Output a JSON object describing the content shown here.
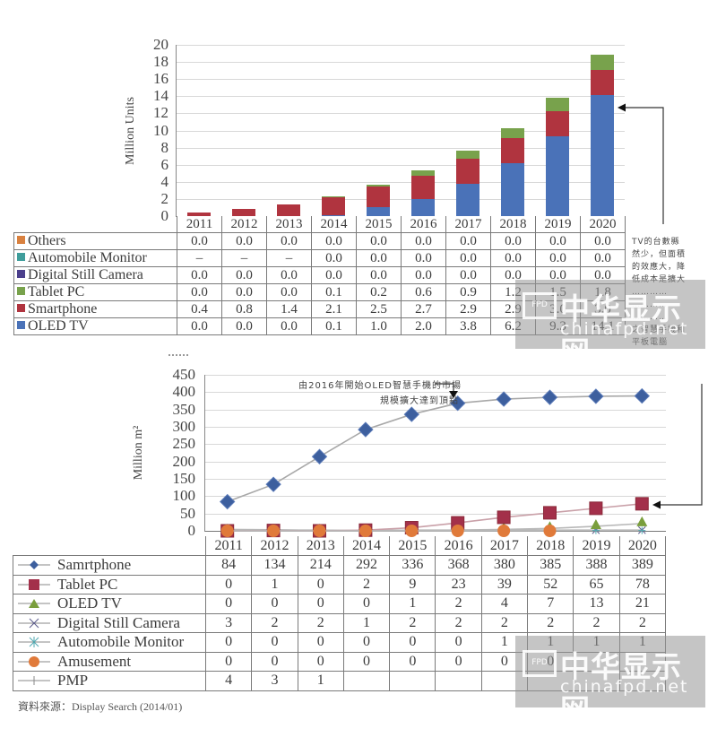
{
  "chart_data": [
    {
      "type": "bar",
      "stacked": true,
      "title": "",
      "xlabel": "",
      "ylabel": "Million Units",
      "ylim": [
        0,
        20
      ],
      "yticks": [
        0,
        2,
        4,
        6,
        8,
        10,
        12,
        14,
        16,
        18,
        20
      ],
      "grid": true,
      "legend_position": "data-table-left",
      "categories": [
        "2011",
        "2012",
        "2013",
        "2014",
        "2015",
        "2016",
        "2017",
        "2018",
        "2019",
        "2020"
      ],
      "series": [
        {
          "name": "Others",
          "color": "#d9813f",
          "values": [
            "0.0",
            "0.0",
            "0.0",
            "0.0",
            "0.0",
            "0.0",
            "0.0",
            "0.0",
            "0.0",
            "0.0"
          ]
        },
        {
          "name": "Automobile Monitor",
          "color": "#3f9d9b",
          "values": [
            "–",
            "–",
            "–",
            "0.0",
            "0.0",
            "0.0",
            "0.0",
            "0.0",
            "0.0",
            "0.0"
          ]
        },
        {
          "name": "Digital Still Camera",
          "color": "#4b3f8c",
          "values": [
            "0.0",
            "0.0",
            "0.0",
            "0.0",
            "0.0",
            "0.0",
            "0.0",
            "0.0",
            "0.0",
            "0.0"
          ]
        },
        {
          "name": "Tablet PC",
          "color": "#78a24c",
          "values": [
            "0.0",
            "0.0",
            "0.0",
            "0.1",
            "0.2",
            "0.6",
            "0.9",
            "1.2",
            "1.5",
            "1.8"
          ]
        },
        {
          "name": "Smartphone",
          "color": "#b0343f",
          "values": [
            "0.4",
            "0.8",
            "1.4",
            "2.1",
            "2.5",
            "2.7",
            "2.9",
            "2.9",
            "3.0",
            "3.0"
          ]
        },
        {
          "name": "OLED TV",
          "color": "#4a72b8",
          "values": [
            "0.0",
            "0.0",
            "0.0",
            "0.1",
            "1.0",
            "2.0",
            "3.8",
            "6.2",
            "9.3",
            "14.1"
          ]
        }
      ],
      "annotation": "TV的台數縣然少，但面積的效應大，降低成本是擴大… 之智慧手機和平板電腦"
    },
    {
      "type": "line",
      "title": "",
      "xlabel": "",
      "ylabel": "Million m²",
      "ylim": [
        0,
        450
      ],
      "yticks": [
        0,
        50,
        100,
        150,
        200,
        250,
        300,
        350,
        400,
        450
      ],
      "grid": true,
      "legend_position": "data-table-left",
      "categories": [
        "2011",
        "2012",
        "2013",
        "2014",
        "2015",
        "2016",
        "2017",
        "2018",
        "2019",
        "2020"
      ],
      "series": [
        {
          "name": "Samrtphone",
          "marker": "diamond",
          "color": "#3d5f9e",
          "values": [
            "84",
            "134",
            "214",
            "292",
            "336",
            "368",
            "380",
            "385",
            "388",
            "389"
          ]
        },
        {
          "name": "Tablet PC",
          "marker": "square",
          "color": "#a3304a",
          "values": [
            "0",
            "1",
            "0",
            "2",
            "9",
            "23",
            "39",
            "52",
            "65",
            "78"
          ]
        },
        {
          "name": "OLED TV",
          "marker": "triangle",
          "color": "#7a9e3c",
          "values": [
            "0",
            "0",
            "0",
            "0",
            "1",
            "2",
            "4",
            "7",
            "13",
            "21"
          ]
        },
        {
          "name": "Digital Still Camera",
          "marker": "x",
          "color": "#5a5a8a",
          "values": [
            "3",
            "2",
            "2",
            "1",
            "2",
            "2",
            "2",
            "2",
            "2",
            "2"
          ]
        },
        {
          "name": "Automobile Monitor",
          "marker": "star",
          "color": "#4fa8b0",
          "values": [
            "0",
            "0",
            "0",
            "0",
            "0",
            "0",
            "1",
            "1",
            "1",
            "1"
          ]
        },
        {
          "name": "Amusement",
          "marker": "circle",
          "color": "#e07a3a",
          "values": [
            "0",
            "0",
            "0",
            "0",
            "0",
            "0",
            "0",
            "0",
            "",
            ""
          ]
        },
        {
          "name": "PMP",
          "marker": "plus",
          "color": "#888888",
          "values": [
            "4",
            "3",
            "1",
            "",
            "",
            "",
            "",
            "",
            "",
            ""
          ]
        }
      ],
      "annotation_line1": "由2016年開始OLED智慧手機的市場",
      "annotation_line2": "規模擴大達到頂點"
    }
  ],
  "top_chart": {
    "ylabel": "Million Units",
    "yticks": [
      "20",
      "18",
      "16",
      "14",
      "12",
      "10",
      "8",
      "6",
      "4",
      "2",
      "0"
    ],
    "years": [
      "2011",
      "2012",
      "2013",
      "2014",
      "2015",
      "2016",
      "2017",
      "2018",
      "2019",
      "2020"
    ],
    "note_lines": [
      "TV的台數縣",
      "然少，但面積",
      "的效應大，降",
      "低成本是擴大",
      "…………",
      "…………",
      "…………",
      "之智慧手機和",
      "平板電腦"
    ]
  },
  "bottom_chart": {
    "ylabel": "Million m²",
    "yticks": [
      "450",
      "400",
      "350",
      "300",
      "250",
      "200",
      "150",
      "100",
      "50",
      "0"
    ],
    "years": [
      "2011",
      "2012",
      "2013",
      "2014",
      "2015",
      "2016",
      "2017",
      "2018",
      "2019",
      "2020"
    ],
    "callout_line1": "由2016年開始OLED智慧手機的市場",
    "callout_line2": "規模擴大達到頂點"
  },
  "source": "資料來源：Display Search (2014/01)",
  "watermark": {
    "cn": "中华显示网",
    "en": "chinafpd.net",
    "logo": "FPD"
  }
}
